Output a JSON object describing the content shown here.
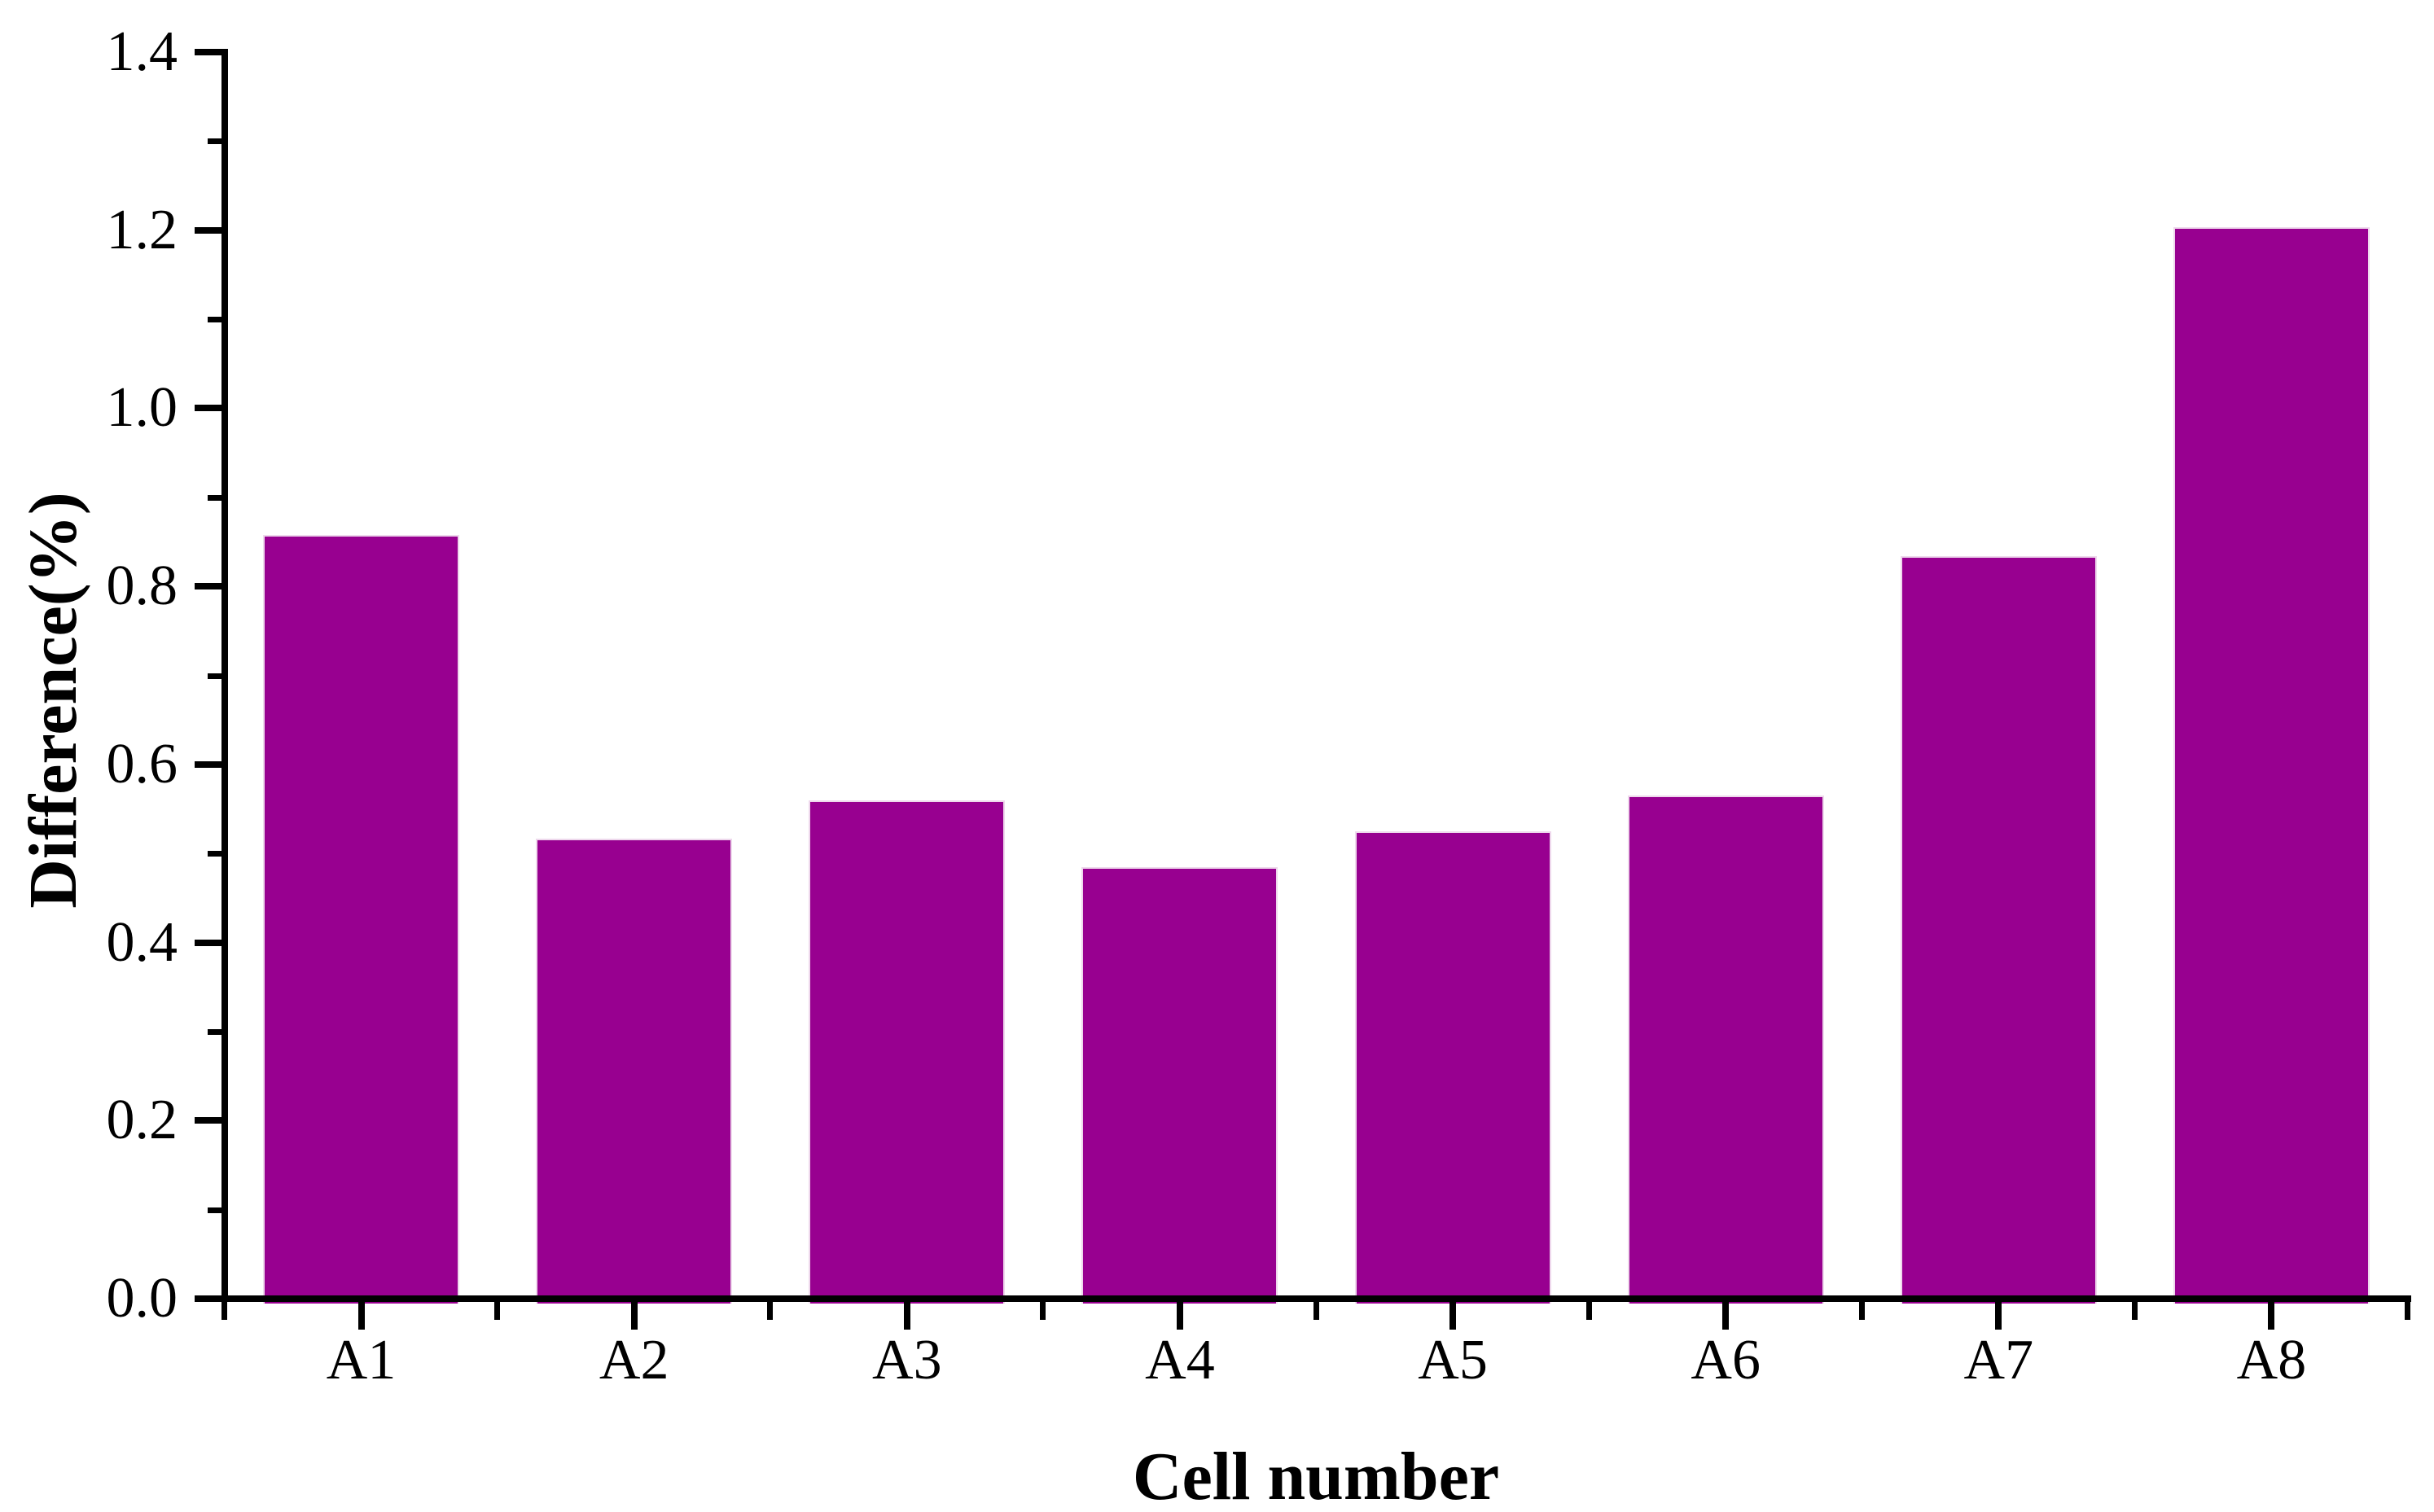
{
  "chart_data": {
    "type": "bar",
    "categories": [
      "A1",
      "A2",
      "A3",
      "A4",
      "A5",
      "A6",
      "A7",
      "A8"
    ],
    "values": [
      0.858,
      0.517,
      0.56,
      0.485,
      0.525,
      0.565,
      0.834,
      1.203
    ],
    "title": "",
    "xlabel": "Cell number",
    "ylabel": "Difference(%)",
    "ylim": [
      0.0,
      1.4
    ],
    "y_major_step": 0.2,
    "y_minor_step": 0.1,
    "y_tick_labels": [
      "0.0",
      "0.2",
      "0.4",
      "0.6",
      "0.8",
      "1.0",
      "1.2",
      "1.4"
    ],
    "x_tick_decimals": 1,
    "grid": "off",
    "legend": "none",
    "bar_color": "#980090",
    "bar_edge_color": "#eed8ec",
    "axis_color": "#000000",
    "background_color": "#ffffff"
  }
}
